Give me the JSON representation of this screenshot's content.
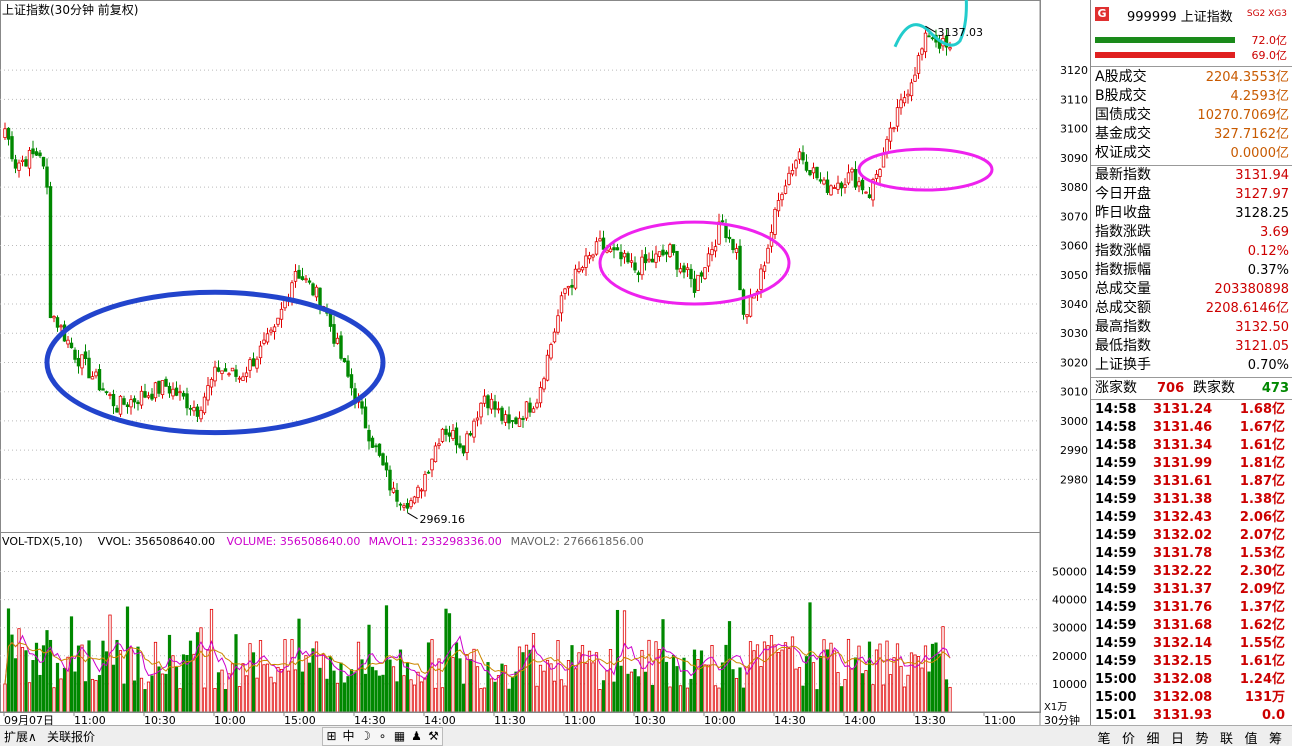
{
  "header": {
    "title": "上证指数(30分钟 前复权)"
  },
  "volume_header": [
    {
      "text": "VOL-TDX(5,10)",
      "color": "#000000"
    },
    {
      "text": "VVOL: 356508640.00",
      "color": "#000000"
    },
    {
      "text": "VOLUME: 356508640.00",
      "color": "#cc00cc"
    },
    {
      "text": "MAVOL1: 233298336.00",
      "color": "#cc00cc"
    },
    {
      "text": "MAVOL2: 276661856.00",
      "color": "#666666"
    }
  ],
  "chart_data": {
    "type": "candlestick",
    "price_axis": {
      "ticks": [
        3120,
        3110,
        3100,
        3090,
        3080,
        3070,
        3060,
        3050,
        3040,
        3030,
        3020,
        3010,
        3000,
        2990,
        2980
      ]
    },
    "volume_axis": {
      "ticks": [
        "50000",
        "40000",
        "30000",
        "20000",
        "10000"
      ],
      "unit": "X1万"
    },
    "time_labels": [
      "09月07日",
      "11:00",
      "10:30",
      "10:00",
      "15:00",
      "14:30",
      "14:00",
      "11:30",
      "11:00",
      "10:30",
      "10:00",
      "14:30",
      "14:00",
      "13:30",
      "11:00"
    ],
    "period_label": "30分钟",
    "annotations": {
      "high": "3137.03",
      "low": "2969.16"
    },
    "price_segments": [
      [
        3104,
        3088,
        4
      ],
      [
        3088,
        3092,
        7
      ],
      [
        3092,
        3079,
        2
      ],
      [
        3040,
        3023,
        8
      ],
      [
        3023,
        3005,
        12
      ],
      [
        3005,
        3012,
        14
      ],
      [
        3012,
        3004,
        9
      ],
      [
        3004,
        3018,
        6
      ],
      [
        3018,
        3015,
        6
      ],
      [
        3015,
        3030,
        10
      ],
      [
        3030,
        3052,
        6
      ],
      [
        3052,
        3040,
        8
      ],
      [
        3040,
        3018,
        6
      ],
      [
        3018,
        3005,
        4
      ],
      [
        3005,
        2975,
        10
      ],
      [
        2975,
        2972,
        6
      ],
      [
        2972,
        2998,
        8
      ],
      [
        2998,
        2992,
        6
      ],
      [
        2992,
        3009,
        6
      ],
      [
        3009,
        2998,
        7
      ],
      [
        2998,
        3008,
        8
      ],
      [
        3008,
        3045,
        8
      ],
      [
        3045,
        3060,
        10
      ],
      [
        3060,
        3052,
        10
      ],
      [
        3052,
        3058,
        10
      ],
      [
        3058,
        3046,
        7
      ],
      [
        3046,
        3068,
        8
      ],
      [
        3068,
        3058,
        4
      ],
      [
        3058,
        3035,
        2
      ],
      [
        3035,
        3045,
        4
      ],
      [
        3045,
        3080,
        7
      ],
      [
        3080,
        3092,
        5
      ],
      [
        3092,
        3080,
        7
      ],
      [
        3080,
        3084,
        8
      ],
      [
        3084,
        3078,
        5
      ],
      [
        3078,
        3094,
        5
      ],
      [
        3094,
        3108,
        4
      ],
      [
        3108,
        3133,
        8
      ],
      [
        3133,
        3126,
        6
      ]
    ],
    "annotation_circles": [
      {
        "color": "#2244cc",
        "cx_bar": 60,
        "cy_price": 3020,
        "rx_bars": 48,
        "ry_price": 24
      },
      {
        "color": "#ee22ee",
        "cx_bar": 197,
        "cy_price": 3054,
        "rx_bars": 27,
        "ry_price": 14
      },
      {
        "color": "#ee22ee",
        "cx_bar": 263,
        "cy_price": 3086,
        "rx_bars": 19,
        "ry_price": 7
      }
    ]
  },
  "quote_panel": {
    "code_name": "999999 上证指数",
    "sg_labels": "SG2 XG3",
    "g_label": "G",
    "buy_bar_value": "72.0亿",
    "sell_bar_value": "69.0亿",
    "turnover": [
      {
        "label": "A股成交",
        "value": "2204.3553亿"
      },
      {
        "label": "B股成交",
        "value": "4.2593亿"
      },
      {
        "label": "国债成交",
        "value": "10270.7069亿"
      },
      {
        "label": "基金成交",
        "value": "327.7162亿"
      },
      {
        "label": "权证成交",
        "value": "0.0000亿"
      }
    ],
    "stats": [
      {
        "label": "最新指数",
        "value": "3131.94",
        "color": "#cc0000"
      },
      {
        "label": "今日开盘",
        "value": "3127.97",
        "color": "#cc0000"
      },
      {
        "label": "昨日收盘",
        "value": "3128.25",
        "color": "#000000"
      },
      {
        "label": "指数涨跌",
        "value": "3.69",
        "color": "#cc0000"
      },
      {
        "label": "指数涨幅",
        "value": "0.12%",
        "color": "#cc0000"
      },
      {
        "label": "指数振幅",
        "value": "0.37%",
        "color": "#000000"
      },
      {
        "label": "总成交量",
        "value": "203380898",
        "color": "#cc0000"
      },
      {
        "label": "总成交额",
        "value": "2208.6146亿",
        "color": "#cc0000"
      },
      {
        "label": "最高指数",
        "value": "3132.50",
        "color": "#cc0000"
      },
      {
        "label": "最低指数",
        "value": "3121.05",
        "color": "#cc0000"
      },
      {
        "label": "上证换手",
        "value": "0.70%",
        "color": "#000000"
      }
    ],
    "up_label": "涨家数",
    "up_count": "706",
    "down_label": "跌家数",
    "down_count": "473",
    "ticks": [
      {
        "time": "14:58",
        "price": "3131.24",
        "amount": "1.68亿"
      },
      {
        "time": "14:58",
        "price": "3131.46",
        "amount": "1.67亿"
      },
      {
        "time": "14:58",
        "price": "3131.34",
        "amount": "1.61亿"
      },
      {
        "time": "14:59",
        "price": "3131.99",
        "amount": "1.81亿"
      },
      {
        "time": "14:59",
        "price": "3131.61",
        "amount": "1.87亿"
      },
      {
        "time": "14:59",
        "price": "3131.38",
        "amount": "1.38亿"
      },
      {
        "time": "14:59",
        "price": "3132.43",
        "amount": "2.06亿"
      },
      {
        "time": "14:59",
        "price": "3132.02",
        "amount": "2.07亿"
      },
      {
        "time": "14:59",
        "price": "3131.78",
        "amount": "1.53亿"
      },
      {
        "time": "14:59",
        "price": "3132.22",
        "amount": "2.30亿"
      },
      {
        "time": "14:59",
        "price": "3131.37",
        "amount": "2.09亿"
      },
      {
        "time": "14:59",
        "price": "3131.76",
        "amount": "1.37亿"
      },
      {
        "time": "14:59",
        "price": "3131.68",
        "amount": "1.62亿"
      },
      {
        "time": "14:59",
        "price": "3132.14",
        "amount": "1.55亿"
      },
      {
        "time": "14:59",
        "price": "3132.15",
        "amount": "1.61亿"
      },
      {
        "time": "15:00",
        "price": "3132.08",
        "amount": "1.24亿"
      },
      {
        "time": "15:00",
        "price": "3132.08",
        "amount": "131万"
      },
      {
        "time": "15:01",
        "price": "3131.93",
        "amount": "0.0"
      }
    ]
  },
  "bottom_bar": {
    "tabs": [
      "扩展∧",
      "关联报价"
    ],
    "tools": [
      "⊞",
      "中",
      "☽",
      "∘",
      "▦",
      "♟",
      "⚒"
    ],
    "right_tabs": [
      "笔",
      "价",
      "细",
      "日",
      "势",
      "联",
      "值",
      "筹"
    ]
  }
}
